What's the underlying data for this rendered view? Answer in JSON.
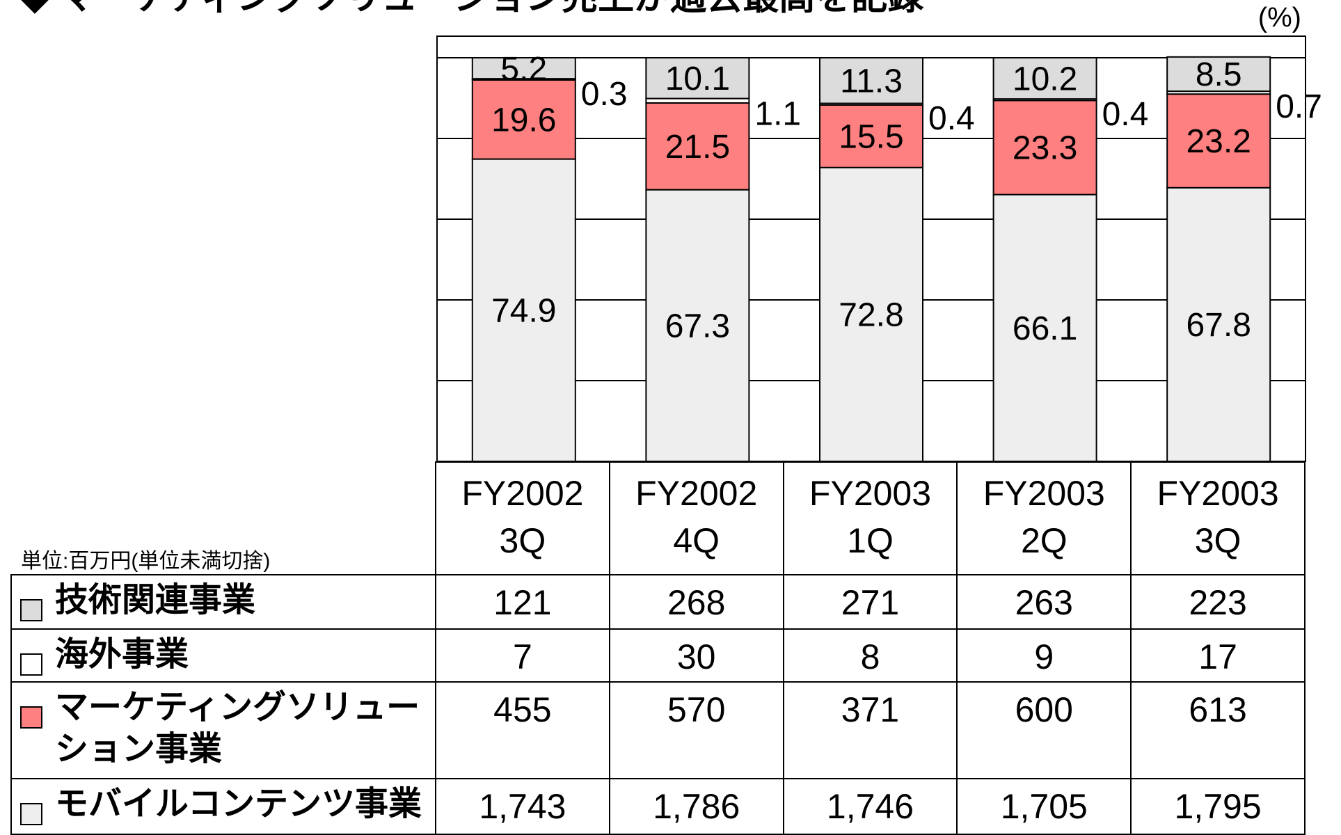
{
  "chart_data": {
    "type": "stacked_bar",
    "title": "◆ マーケティングソリューション売上が過去最高を記録",
    "unit_label": "(%)",
    "note": "単位:百万円(単位未満切捨)",
    "categories": [
      "FY2002\n3Q",
      "FY2002\n4Q",
      "FY2003\n1Q",
      "FY2003\n2Q",
      "FY2003\n3Q"
    ],
    "series": [
      {
        "name": "技術関連事業",
        "color": "#dcdcdc",
        "values": [
          5.2,
          10.1,
          11.3,
          10.2,
          8.5
        ]
      },
      {
        "name": "海外事業",
        "color": "#ffffff",
        "values": [
          0.3,
          1.1,
          0.4,
          0.4,
          0.7
        ]
      },
      {
        "name": "マーケティングソリューション事業",
        "color": "#ff8080",
        "values": [
          19.6,
          21.5,
          15.5,
          23.3,
          23.2
        ]
      },
      {
        "name": "モバイルコンテンツ事業",
        "color": "#eeeeee",
        "values": [
          74.9,
          67.3,
          72.8,
          66.1,
          67.8
        ]
      }
    ],
    "ylim": [
      0,
      100
    ],
    "yticks": [
      0,
      20,
      40,
      60,
      80,
      100
    ],
    "grid": true
  },
  "table": {
    "rows": [
      [
        "121",
        "268",
        "271",
        "263",
        "223"
      ],
      [
        "7",
        "30",
        "8",
        "9",
        "17"
      ],
      [
        "455",
        "570",
        "371",
        "600",
        "613"
      ],
      [
        "1,743",
        "1,786",
        "1,746",
        "1,705",
        "1,795"
      ]
    ]
  }
}
